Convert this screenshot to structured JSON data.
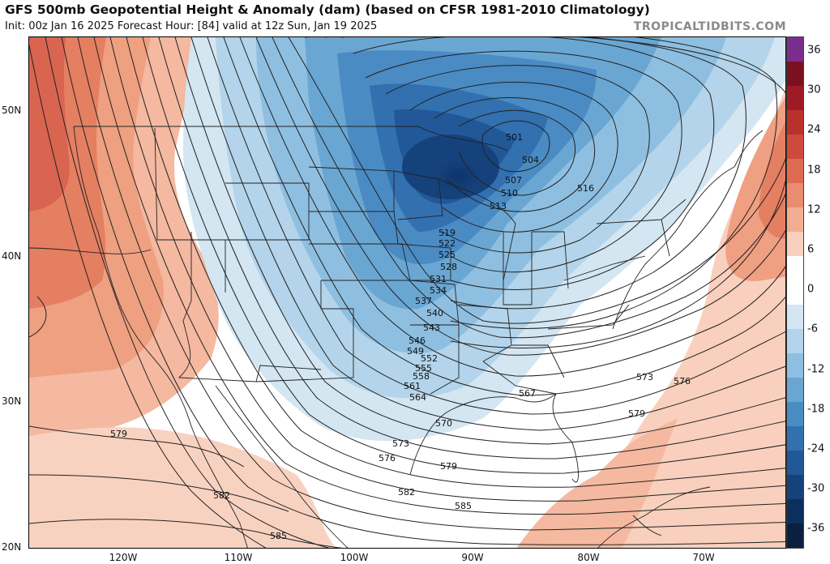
{
  "header": {
    "title": "GFS 500mb Geopotential Height & Anomaly (dam) (based on CFSR 1981-2010 Climatology)",
    "subtitle": "Init: 00z Jan 16 2025   Forecast Hour: [84]   valid at 12z Sun, Jan 19 2025",
    "watermark": "TROPICALTIDBITS.COM"
  },
  "axes": {
    "lat_labels": [
      "50N",
      "40N",
      "30N",
      "20N"
    ],
    "lon_labels": [
      "120W",
      "110W",
      "100W",
      "90W",
      "80W",
      "70W"
    ]
  },
  "colorbar": {
    "ticks": [
      "36",
      "30",
      "24",
      "18",
      "12",
      "6",
      "0",
      "-6",
      "-12",
      "-18",
      "-24",
      "-30",
      "-36"
    ],
    "colors": [
      "#7b2d8e",
      "#7a1020",
      "#9e1a24",
      "#b9312c",
      "#cd4a3d",
      "#df6a52",
      "#ea8c70",
      "#f2ae93",
      "#f8d0bd",
      "#ffffff",
      "#ffffff",
      "#d3e6f2",
      "#b3d4ea",
      "#8fbfe0",
      "#6aa6d2",
      "#4b8bc3",
      "#3270b0",
      "#225897",
      "#16427c",
      "#0c2f5e",
      "#0b1f3f"
    ]
  },
  "contours": {
    "labels": [
      "501",
      "504",
      "507",
      "510",
      "513",
      "516",
      "519",
      "522",
      "525",
      "528",
      "531",
      "534",
      "537",
      "540",
      "543",
      "546",
      "549",
      "552",
      "555",
      "558",
      "561",
      "564",
      "567",
      "570",
      "573",
      "576",
      "579",
      "582",
      "585"
    ],
    "right_labels": [
      "573",
      "576",
      "579"
    ],
    "west_labels": [
      "579",
      "582",
      "585"
    ]
  }
}
